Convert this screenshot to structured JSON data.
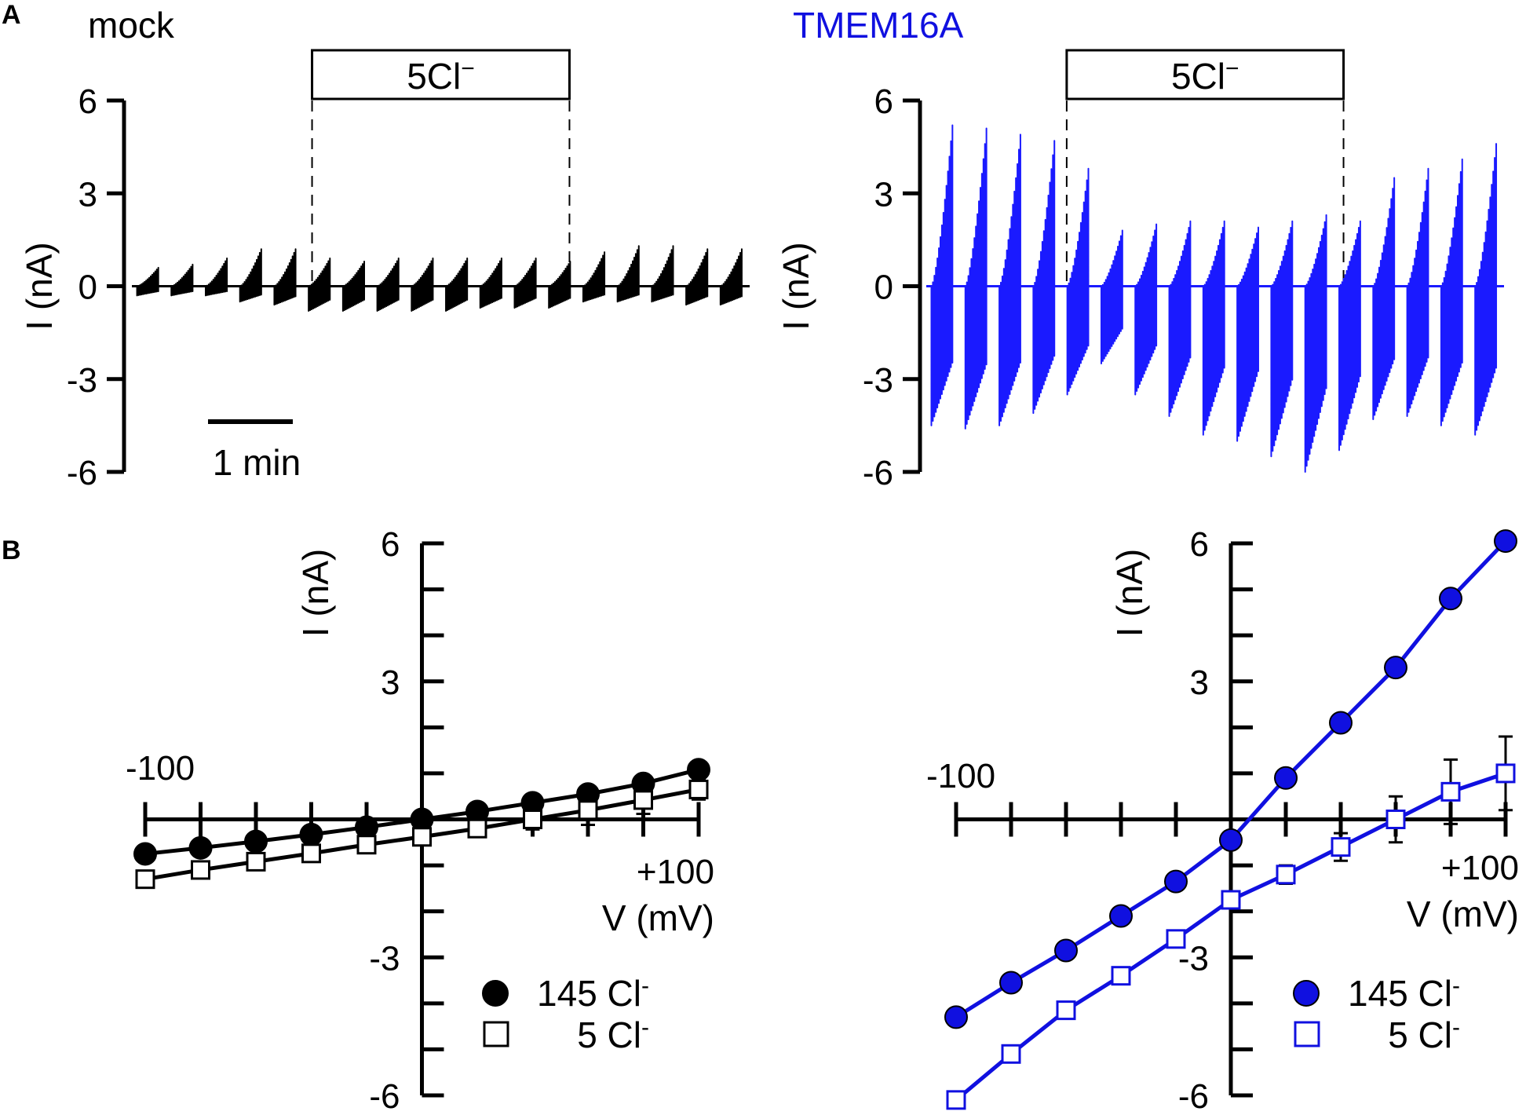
{
  "figure": {
    "panels": [
      {
        "letter": "A",
        "label": "A"
      },
      {
        "letter": "B",
        "label": "B"
      }
    ]
  },
  "chart_data": [
    {
      "id": "trace-mock",
      "type": "line",
      "title": "mock",
      "title_color": "#000000",
      "trace_color": "#000000",
      "ylabel": "I (nA)",
      "ylim": [
        -6,
        6
      ],
      "yticks": [
        6,
        3,
        0,
        -3,
        -6
      ],
      "ytick_labels": [
        "6",
        "3",
        "0",
        "-3",
        "-6"
      ],
      "scale_bar_label": "1 min",
      "scale_bar_minutes": 1,
      "time_range_min": [
        0,
        7.2
      ],
      "bar_label_main": "5Cl",
      "bar_label_sup": "−",
      "solution_window_min": [
        2.1,
        5.1
      ],
      "ramp_count": 18,
      "ramp_peaks_nA": [
        0.6,
        0.7,
        0.9,
        1.2,
        1.2,
        0.9,
        0.8,
        0.9,
        0.9,
        0.9,
        0.9,
        0.9,
        0.8,
        1.1,
        1.3,
        1.3,
        1.2,
        1.2
      ],
      "ramp_troughs_nA": [
        -0.3,
        -0.3,
        -0.3,
        -0.5,
        -0.6,
        -0.8,
        -0.8,
        -0.8,
        -0.8,
        -0.8,
        -0.7,
        -0.7,
        -0.7,
        -0.5,
        -0.5,
        -0.5,
        -0.6,
        -0.6
      ]
    },
    {
      "id": "trace-tmem16a",
      "type": "line",
      "title": "TMEM16A",
      "title_color": "#1010e0",
      "trace_color": "#1a1aff",
      "ylabel": "I (nA)",
      "ylim": [
        -6,
        6
      ],
      "yticks": [
        6,
        3,
        0,
        -3,
        -6
      ],
      "ytick_labels": [
        "6",
        "3",
        "0",
        "-3",
        "-6"
      ],
      "time_range_min": [
        0,
        7.2
      ],
      "bar_label_main": "5Cl",
      "bar_label_sup": "−",
      "solution_window_min": [
        1.75,
        5.2
      ],
      "ramp_count": 17,
      "ramp_peaks_nA": [
        5.2,
        5.1,
        4.9,
        4.7,
        3.8,
        1.8,
        2.0,
        2.1,
        2.1,
        1.9,
        2.1,
        2.3,
        2.1,
        3.5,
        3.8,
        4.1,
        4.6
      ],
      "ramp_troughs_nA": [
        -4.5,
        -4.6,
        -4.5,
        -4.1,
        -3.5,
        -2.5,
        -3.5,
        -4.2,
        -4.8,
        -5.0,
        -5.5,
        -6.0,
        -5.3,
        -4.3,
        -4.2,
        -4.5,
        -4.8
      ]
    },
    {
      "id": "iv-mock",
      "type": "scatter",
      "color": "#000000",
      "xlabel": "V (mV)",
      "ylabel": "I (nA)",
      "xlim": [
        -100,
        100
      ],
      "ylim": [
        -6,
        6
      ],
      "x_tick_label_neg": "-100",
      "x_tick_label_pos": "+100",
      "y_tick_labels": {
        "6": "6",
        "3": "3",
        "-3": "-3",
        "-6": "-6"
      },
      "x": [
        -100,
        -80,
        -60,
        -40,
        -20,
        0,
        20,
        40,
        60,
        80,
        100
      ],
      "series": [
        {
          "name": "145 Cl",
          "sup": "-",
          "marker": "filled-circle",
          "values": [
            -0.75,
            -0.62,
            -0.48,
            -0.33,
            -0.17,
            0.0,
            0.17,
            0.36,
            0.55,
            0.78,
            1.08
          ],
          "errors": [
            0,
            0,
            0,
            0,
            0,
            0,
            0,
            0,
            0,
            0,
            0
          ]
        },
        {
          "name": "5 Cl",
          "sup": "-",
          "marker": "open-square",
          "values": [
            -1.3,
            -1.1,
            -0.92,
            -0.74,
            -0.55,
            -0.38,
            -0.2,
            0.0,
            0.2,
            0.42,
            0.65
          ],
          "errors": [
            0,
            0,
            0,
            0,
            0,
            0,
            0.12,
            0.22,
            0.32,
            0.3,
            0.22
          ]
        }
      ]
    },
    {
      "id": "iv-tmem16a",
      "type": "scatter",
      "color": "#1010e0",
      "xlabel": "V (mV)",
      "ylabel": "I (nA)",
      "xlim": [
        -100,
        100
      ],
      "ylim": [
        -6,
        6
      ],
      "x_tick_label_neg": "-100",
      "x_tick_label_pos": "+100",
      "y_tick_labels": {
        "6": "6",
        "3": "3",
        "-3": "-3",
        "-6": "-6"
      },
      "x": [
        -100,
        -80,
        -60,
        -40,
        -20,
        0,
        20,
        40,
        60,
        80,
        100
      ],
      "series": [
        {
          "name": "145 Cl",
          "sup": "-",
          "marker": "filled-circle",
          "values": [
            -4.3,
            -3.55,
            -2.85,
            -2.1,
            -1.35,
            -0.45,
            0.9,
            2.1,
            3.3,
            4.8,
            6.05
          ],
          "errors": [
            0,
            0,
            0,
            0,
            0,
            0,
            0,
            0,
            0,
            0,
            0
          ]
        },
        {
          "name": "5 Cl",
          "sup": "-",
          "marker": "open-square",
          "values": [
            -6.1,
            -5.1,
            -4.15,
            -3.4,
            -2.6,
            -1.75,
            -1.2,
            -0.6,
            0.0,
            0.6,
            1.0
          ],
          "errors": [
            0,
            0,
            0.15,
            0.1,
            0,
            0.1,
            0.2,
            0.3,
            0.5,
            0.7,
            0.8
          ]
        }
      ]
    }
  ]
}
